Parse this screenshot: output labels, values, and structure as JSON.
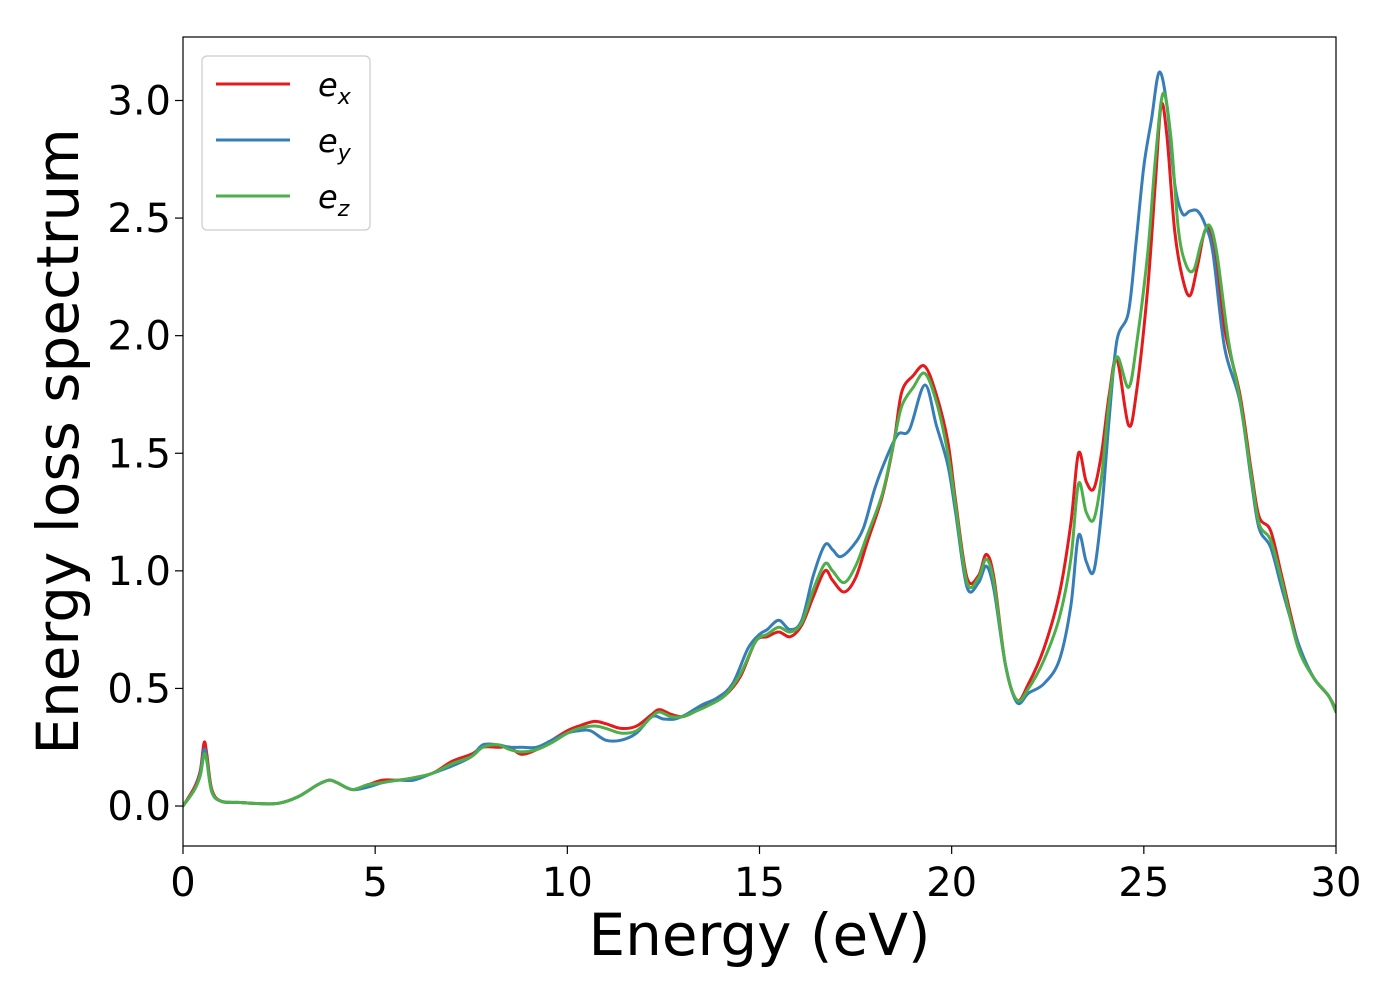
{
  "chart_data": {
    "type": "line",
    "title": "",
    "xlabel": "Energy (eV)",
    "ylabel": "Energy loss spectrum",
    "xlim": [
      0,
      30
    ],
    "ylim": [
      -0.17,
      3.27
    ],
    "xticks": [
      0,
      5,
      10,
      15,
      20,
      25,
      30
    ],
    "xtick_labels": [
      "0",
      "5",
      "10",
      "15",
      "20",
      "25",
      "30"
    ],
    "yticks": [
      0.0,
      0.5,
      1.0,
      1.5,
      2.0,
      2.5,
      3.0
    ],
    "ytick_labels": [
      "0.0",
      "0.5",
      "1.0",
      "1.5",
      "2.0",
      "2.5",
      "3.0"
    ],
    "grid": false,
    "legend_position": "top-left",
    "colors": {
      "e_x": "#e41a1c",
      "e_y": "#377eb8",
      "e_z": "#4daf4a"
    },
    "series": [
      {
        "name": "e_x",
        "legend_base": "e",
        "legend_sub": "x",
        "color": "#e41a1c",
        "points": [
          [
            0,
            0.0
          ],
          [
            0.3,
            0.08
          ],
          [
            0.45,
            0.15
          ],
          [
            0.55,
            0.27
          ],
          [
            0.62,
            0.22
          ],
          [
            0.75,
            0.07
          ],
          [
            1.0,
            0.02
          ],
          [
            1.5,
            0.015
          ],
          [
            2.0,
            0.01
          ],
          [
            2.5,
            0.012
          ],
          [
            3.0,
            0.04
          ],
          [
            3.5,
            0.09
          ],
          [
            3.8,
            0.11
          ],
          [
            4.0,
            0.1
          ],
          [
            4.4,
            0.07
          ],
          [
            4.8,
            0.09
          ],
          [
            5.2,
            0.11
          ],
          [
            5.6,
            0.11
          ],
          [
            6.0,
            0.12
          ],
          [
            6.5,
            0.14
          ],
          [
            7.0,
            0.19
          ],
          [
            7.5,
            0.22
          ],
          [
            7.8,
            0.25
          ],
          [
            8.2,
            0.25
          ],
          [
            8.5,
            0.25
          ],
          [
            8.8,
            0.22
          ],
          [
            9.2,
            0.24
          ],
          [
            9.6,
            0.28
          ],
          [
            10.0,
            0.32
          ],
          [
            10.3,
            0.34
          ],
          [
            10.7,
            0.36
          ],
          [
            11.0,
            0.35
          ],
          [
            11.4,
            0.33
          ],
          [
            11.8,
            0.34
          ],
          [
            12.2,
            0.39
          ],
          [
            12.4,
            0.41
          ],
          [
            12.7,
            0.39
          ],
          [
            13.0,
            0.38
          ],
          [
            13.3,
            0.4
          ],
          [
            13.7,
            0.44
          ],
          [
            14.1,
            0.47
          ],
          [
            14.5,
            0.55
          ],
          [
            14.9,
            0.7
          ],
          [
            15.2,
            0.72
          ],
          [
            15.5,
            0.74
          ],
          [
            15.8,
            0.72
          ],
          [
            16.1,
            0.77
          ],
          [
            16.4,
            0.89
          ],
          [
            16.7,
            1.0
          ],
          [
            16.9,
            0.96
          ],
          [
            17.2,
            0.91
          ],
          [
            17.5,
            0.97
          ],
          [
            17.8,
            1.12
          ],
          [
            18.2,
            1.32
          ],
          [
            18.5,
            1.55
          ],
          [
            18.7,
            1.76
          ],
          [
            19.0,
            1.83
          ],
          [
            19.3,
            1.87
          ],
          [
            19.6,
            1.75
          ],
          [
            19.9,
            1.55
          ],
          [
            20.1,
            1.3
          ],
          [
            20.4,
            0.97
          ],
          [
            20.7,
            0.98
          ],
          [
            20.9,
            1.07
          ],
          [
            21.1,
            0.97
          ],
          [
            21.4,
            0.6
          ],
          [
            21.7,
            0.45
          ],
          [
            22.0,
            0.52
          ],
          [
            22.4,
            0.67
          ],
          [
            22.8,
            0.9
          ],
          [
            23.1,
            1.2
          ],
          [
            23.3,
            1.5
          ],
          [
            23.5,
            1.38
          ],
          [
            23.7,
            1.35
          ],
          [
            23.9,
            1.5
          ],
          [
            24.1,
            1.75
          ],
          [
            24.3,
            1.9
          ],
          [
            24.6,
            1.62
          ],
          [
            24.8,
            1.75
          ],
          [
            25.1,
            2.2
          ],
          [
            25.3,
            2.65
          ],
          [
            25.45,
            2.98
          ],
          [
            25.6,
            2.85
          ],
          [
            25.8,
            2.45
          ],
          [
            26.0,
            2.25
          ],
          [
            26.2,
            2.17
          ],
          [
            26.4,
            2.3
          ],
          [
            26.6,
            2.45
          ],
          [
            26.8,
            2.4
          ],
          [
            27.1,
            2.03
          ],
          [
            27.5,
            1.75
          ],
          [
            27.8,
            1.42
          ],
          [
            28.0,
            1.23
          ],
          [
            28.3,
            1.17
          ],
          [
            28.6,
            0.97
          ],
          [
            29.0,
            0.7
          ],
          [
            29.4,
            0.55
          ],
          [
            29.8,
            0.47
          ],
          [
            30.0,
            0.41
          ]
        ]
      },
      {
        "name": "e_y",
        "legend_base": "e",
        "legend_sub": "y",
        "color": "#377eb8",
        "points": [
          [
            0,
            0.0
          ],
          [
            0.3,
            0.07
          ],
          [
            0.45,
            0.14
          ],
          [
            0.55,
            0.24
          ],
          [
            0.62,
            0.2
          ],
          [
            0.75,
            0.06
          ],
          [
            1.0,
            0.02
          ],
          [
            1.5,
            0.015
          ],
          [
            2.0,
            0.01
          ],
          [
            2.5,
            0.012
          ],
          [
            3.0,
            0.04
          ],
          [
            3.5,
            0.09
          ],
          [
            3.8,
            0.11
          ],
          [
            4.0,
            0.1
          ],
          [
            4.4,
            0.07
          ],
          [
            4.8,
            0.08
          ],
          [
            5.2,
            0.1
          ],
          [
            5.6,
            0.11
          ],
          [
            6.0,
            0.11
          ],
          [
            6.5,
            0.14
          ],
          [
            7.0,
            0.17
          ],
          [
            7.5,
            0.21
          ],
          [
            7.8,
            0.26
          ],
          [
            8.2,
            0.26
          ],
          [
            8.5,
            0.25
          ],
          [
            8.8,
            0.25
          ],
          [
            9.2,
            0.25
          ],
          [
            9.6,
            0.28
          ],
          [
            10.0,
            0.31
          ],
          [
            10.3,
            0.32
          ],
          [
            10.6,
            0.32
          ],
          [
            11.0,
            0.28
          ],
          [
            11.4,
            0.28
          ],
          [
            11.8,
            0.31
          ],
          [
            12.2,
            0.38
          ],
          [
            12.5,
            0.37
          ],
          [
            12.8,
            0.37
          ],
          [
            13.1,
            0.39
          ],
          [
            13.5,
            0.43
          ],
          [
            13.9,
            0.46
          ],
          [
            14.3,
            0.52
          ],
          [
            14.7,
            0.67
          ],
          [
            15.0,
            0.73
          ],
          [
            15.2,
            0.75
          ],
          [
            15.5,
            0.79
          ],
          [
            15.8,
            0.75
          ],
          [
            16.1,
            0.79
          ],
          [
            16.4,
            0.98
          ],
          [
            16.7,
            1.11
          ],
          [
            16.9,
            1.09
          ],
          [
            17.1,
            1.06
          ],
          [
            17.4,
            1.1
          ],
          [
            17.7,
            1.18
          ],
          [
            18.0,
            1.35
          ],
          [
            18.3,
            1.48
          ],
          [
            18.6,
            1.58
          ],
          [
            18.9,
            1.6
          ],
          [
            19.3,
            1.79
          ],
          [
            19.6,
            1.62
          ],
          [
            19.9,
            1.45
          ],
          [
            20.1,
            1.25
          ],
          [
            20.4,
            0.93
          ],
          [
            20.7,
            0.95
          ],
          [
            20.9,
            1.02
          ],
          [
            21.1,
            0.92
          ],
          [
            21.4,
            0.6
          ],
          [
            21.7,
            0.44
          ],
          [
            22.0,
            0.48
          ],
          [
            22.4,
            0.52
          ],
          [
            22.8,
            0.62
          ],
          [
            23.1,
            0.85
          ],
          [
            23.3,
            1.15
          ],
          [
            23.5,
            1.04
          ],
          [
            23.7,
            1.0
          ],
          [
            23.9,
            1.25
          ],
          [
            24.1,
            1.65
          ],
          [
            24.3,
            1.98
          ],
          [
            24.6,
            2.1
          ],
          [
            24.8,
            2.4
          ],
          [
            25.0,
            2.72
          ],
          [
            25.2,
            2.92
          ],
          [
            25.4,
            3.12
          ],
          [
            25.6,
            2.98
          ],
          [
            25.8,
            2.65
          ],
          [
            26.0,
            2.52
          ],
          [
            26.2,
            2.53
          ],
          [
            26.4,
            2.53
          ],
          [
            26.6,
            2.47
          ],
          [
            26.8,
            2.35
          ],
          [
            27.1,
            1.95
          ],
          [
            27.5,
            1.72
          ],
          [
            27.8,
            1.38
          ],
          [
            28.0,
            1.18
          ],
          [
            28.3,
            1.1
          ],
          [
            28.6,
            0.92
          ],
          [
            29.0,
            0.7
          ],
          [
            29.4,
            0.55
          ],
          [
            29.8,
            0.47
          ],
          [
            30.0,
            0.4
          ]
        ]
      },
      {
        "name": "e_z",
        "legend_base": "e",
        "legend_sub": "z",
        "color": "#4daf4a",
        "points": [
          [
            0,
            0.0
          ],
          [
            0.3,
            0.07
          ],
          [
            0.45,
            0.13
          ],
          [
            0.55,
            0.22
          ],
          [
            0.62,
            0.19
          ],
          [
            0.75,
            0.06
          ],
          [
            1.0,
            0.02
          ],
          [
            1.5,
            0.015
          ],
          [
            2.0,
            0.01
          ],
          [
            2.5,
            0.012
          ],
          [
            3.0,
            0.04
          ],
          [
            3.5,
            0.09
          ],
          [
            3.8,
            0.11
          ],
          [
            4.0,
            0.1
          ],
          [
            4.4,
            0.07
          ],
          [
            4.8,
            0.09
          ],
          [
            5.2,
            0.1
          ],
          [
            5.6,
            0.11
          ],
          [
            6.0,
            0.12
          ],
          [
            6.5,
            0.14
          ],
          [
            7.0,
            0.18
          ],
          [
            7.5,
            0.21
          ],
          [
            7.8,
            0.25
          ],
          [
            8.2,
            0.26
          ],
          [
            8.5,
            0.24
          ],
          [
            8.8,
            0.23
          ],
          [
            9.2,
            0.24
          ],
          [
            9.6,
            0.27
          ],
          [
            10.0,
            0.31
          ],
          [
            10.3,
            0.33
          ],
          [
            10.7,
            0.34
          ],
          [
            11.0,
            0.33
          ],
          [
            11.4,
            0.31
          ],
          [
            11.8,
            0.32
          ],
          [
            12.2,
            0.38
          ],
          [
            12.4,
            0.4
          ],
          [
            12.7,
            0.38
          ],
          [
            13.0,
            0.38
          ],
          [
            13.3,
            0.4
          ],
          [
            13.7,
            0.43
          ],
          [
            14.1,
            0.47
          ],
          [
            14.5,
            0.56
          ],
          [
            14.9,
            0.7
          ],
          [
            15.2,
            0.73
          ],
          [
            15.5,
            0.76
          ],
          [
            15.8,
            0.74
          ],
          [
            16.1,
            0.78
          ],
          [
            16.4,
            0.92
          ],
          [
            16.7,
            1.03
          ],
          [
            16.9,
            1.0
          ],
          [
            17.2,
            0.95
          ],
          [
            17.5,
            1.02
          ],
          [
            17.8,
            1.15
          ],
          [
            18.2,
            1.33
          ],
          [
            18.5,
            1.55
          ],
          [
            18.7,
            1.7
          ],
          [
            19.0,
            1.78
          ],
          [
            19.3,
            1.84
          ],
          [
            19.6,
            1.72
          ],
          [
            19.9,
            1.5
          ],
          [
            20.1,
            1.28
          ],
          [
            20.4,
            0.95
          ],
          [
            20.7,
            0.97
          ],
          [
            20.9,
            1.05
          ],
          [
            21.1,
            0.95
          ],
          [
            21.4,
            0.6
          ],
          [
            21.7,
            0.45
          ],
          [
            22.0,
            0.5
          ],
          [
            22.4,
            0.62
          ],
          [
            22.8,
            0.8
          ],
          [
            23.1,
            1.05
          ],
          [
            23.3,
            1.37
          ],
          [
            23.5,
            1.25
          ],
          [
            23.7,
            1.22
          ],
          [
            23.9,
            1.4
          ],
          [
            24.1,
            1.72
          ],
          [
            24.3,
            1.91
          ],
          [
            24.6,
            1.78
          ],
          [
            24.8,
            1.95
          ],
          [
            25.1,
            2.35
          ],
          [
            25.3,
            2.75
          ],
          [
            25.5,
            3.03
          ],
          [
            25.7,
            2.85
          ],
          [
            25.9,
            2.45
          ],
          [
            26.1,
            2.3
          ],
          [
            26.3,
            2.28
          ],
          [
            26.5,
            2.4
          ],
          [
            26.7,
            2.47
          ],
          [
            26.9,
            2.35
          ],
          [
            27.2,
            1.98
          ],
          [
            27.5,
            1.73
          ],
          [
            27.8,
            1.4
          ],
          [
            28.0,
            1.2
          ],
          [
            28.3,
            1.13
          ],
          [
            28.6,
            0.95
          ],
          [
            29.0,
            0.68
          ],
          [
            29.4,
            0.55
          ],
          [
            29.8,
            0.47
          ],
          [
            30.0,
            0.4
          ]
        ]
      }
    ]
  }
}
